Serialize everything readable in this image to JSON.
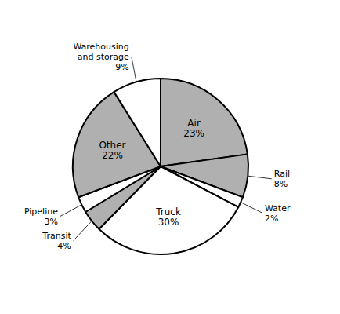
{
  "chart_data": {
    "type": "pie",
    "categories": [
      "Air",
      "Rail",
      "Water",
      "Truck",
      "Transit",
      "Pipeline",
      "Other",
      "Warehousing\nand storage"
    ],
    "values": [
      23,
      8,
      2,
      30,
      4,
      3,
      22,
      9
    ],
    "value_labels": [
      "23%",
      "8%",
      "2%",
      "30%",
      "4%",
      "3%",
      "22%",
      "9%"
    ],
    "colors": [
      "#b0b0b0",
      "#b0b0b0",
      "#ffffff",
      "#ffffff",
      "#b0b0b0",
      "#ffffff",
      "#b0b0b0",
      "#ffffff"
    ],
    "data_labels": true
  }
}
